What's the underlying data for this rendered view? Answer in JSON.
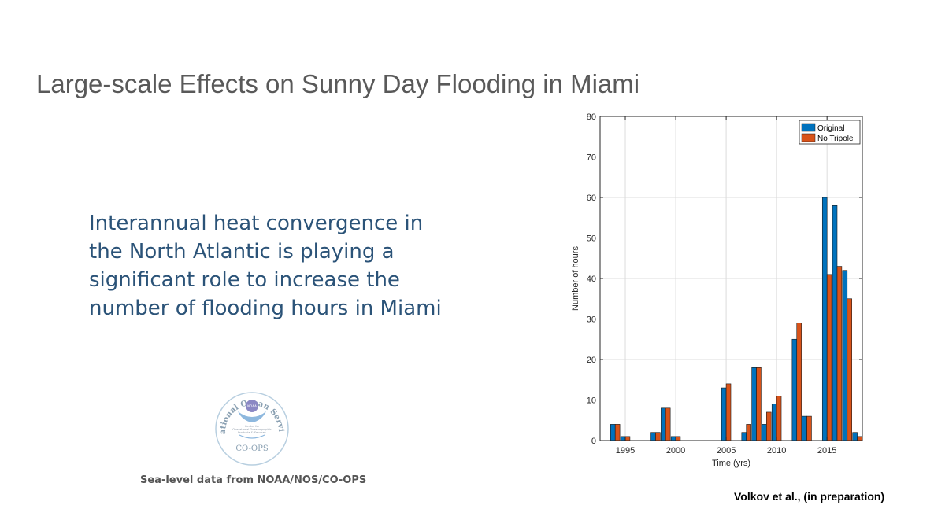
{
  "slide": {
    "title": "Large-scale Effects on Sunny Day Flooding in Miami",
    "body_lines": [
      "Interannual heat convergence in",
      "the North Atlantic is playing a",
      "significant role to increase the",
      "number of flooding hours in Miami"
    ],
    "caption": "Sea-level data from NOAA/NOS/CO-OPS",
    "credit": "Volkov et al., (in preparation)",
    "logo": {
      "ring_text": "National Ocean Service",
      "center_badge": "NOAA",
      "center_text_lines": [
        "Center for",
        "Operational Oceanographic",
        "Products & Services"
      ],
      "bottom_text": "CO-OPS"
    }
  },
  "colors": {
    "title": "#595959",
    "body": "#2b5378",
    "original": "#0072bd",
    "no_tripole": "#d95319"
  },
  "chart_data": {
    "type": "bar",
    "title": "",
    "xlabel": "Time (yrs)",
    "ylabel": "Number of hours",
    "xlim": [
      1992.5,
      2018.5
    ],
    "ylim": [
      0,
      80
    ],
    "xticks": [
      1995,
      2000,
      2005,
      2010,
      2015
    ],
    "yticks": [
      0,
      10,
      20,
      30,
      40,
      50,
      60,
      70,
      80
    ],
    "grid": true,
    "legend_position": "top-right",
    "x": [
      1994,
      1995,
      1996,
      1997,
      1998,
      1999,
      2000,
      2001,
      2002,
      2003,
      2004,
      2005,
      2006,
      2007,
      2008,
      2009,
      2010,
      2011,
      2012,
      2013,
      2014,
      2015,
      2016,
      2017,
      2018
    ],
    "series": [
      {
        "name": "Original",
        "values": [
          4,
          1,
          0,
          0,
          2,
          8,
          1,
          0,
          0,
          0,
          0,
          13,
          0,
          2,
          18,
          4,
          9,
          0,
          25,
          6,
          0,
          60,
          58,
          42,
          2
        ]
      },
      {
        "name": "No Tripole",
        "values": [
          4,
          1,
          0,
          0,
          2,
          8,
          1,
          0,
          0,
          0,
          0,
          14,
          0,
          4,
          18,
          7,
          11,
          0,
          29,
          6,
          0,
          41,
          43,
          35,
          1
        ]
      }
    ]
  }
}
